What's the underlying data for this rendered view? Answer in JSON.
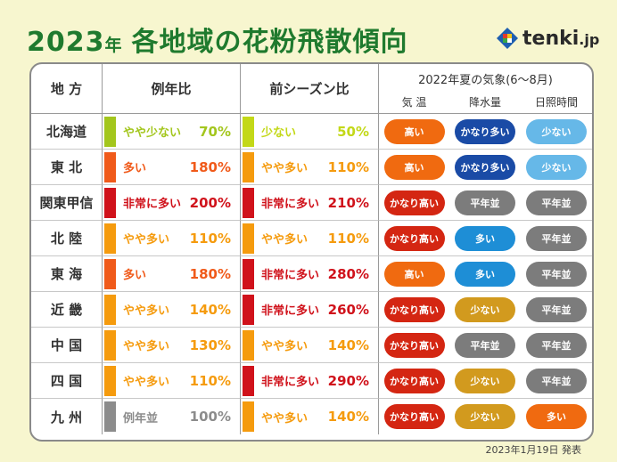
{
  "header": {
    "year": "2023",
    "year_suffix": "年",
    "title": "各地域の花粉飛散傾向",
    "logo_main": "tenki",
    "logo_sub": ".jp"
  },
  "footer": {
    "published": "2023年1月19日 発表"
  },
  "colors": {
    "title_green": "#1f7a2e",
    "background": "#f7f6cf",
    "yellowgreen": "#a3c61d",
    "orange_red": "#f05a1a",
    "red": "#d0121b",
    "orange": "#f59b0e",
    "gray": "#8c8c8c",
    "pill_orange": "#f06a10",
    "pill_red": "#d42612",
    "pill_navy": "#1a4ba6",
    "pill_blue": "#1e8ed6",
    "pill_lightblue": "#66b8e8",
    "pill_gray": "#7c7c7c",
    "pill_gold": "#d29a1e"
  },
  "chart_data": {
    "type": "table",
    "title": "2023年 各地域の花粉飛散傾向",
    "columns": {
      "region": "地 方",
      "vs_normal": "例年比",
      "vs_last": "前シーズン比",
      "weather_group": "2022年夏の気象(6〜8月)",
      "temp": "気 温",
      "rain": "降水量",
      "sun": "日照時間"
    },
    "rows": [
      {
        "region": "北海道",
        "normal_label": "やや少ない",
        "normal_pct": "70%",
        "normal_color": "#a3c61d",
        "last_label": "少ない",
        "last_pct": "50%",
        "last_color": "#c3d818",
        "temp": "高い",
        "temp_color": "#f06a10",
        "rain": "かなり多い",
        "rain_color": "#1a4ba6",
        "sun": "少ない",
        "sun_color": "#66b8e8"
      },
      {
        "region": "東 北",
        "normal_label": "多い",
        "normal_pct": "180%",
        "normal_color": "#f05a1a",
        "last_label": "やや多い",
        "last_pct": "110%",
        "last_color": "#f59b0e",
        "temp": "高い",
        "temp_color": "#f06a10",
        "rain": "かなり多い",
        "rain_color": "#1a4ba6",
        "sun": "少ない",
        "sun_color": "#66b8e8"
      },
      {
        "region": "関東甲信",
        "normal_label": "非常に多い",
        "normal_pct": "200%",
        "normal_color": "#d0121b",
        "last_label": "非常に多い",
        "last_pct": "210%",
        "last_color": "#d0121b",
        "temp": "かなり高い",
        "temp_color": "#d42612",
        "rain": "平年並",
        "rain_color": "#7c7c7c",
        "sun": "平年並",
        "sun_color": "#7c7c7c"
      },
      {
        "region": "北 陸",
        "normal_label": "やや多い",
        "normal_pct": "110%",
        "normal_color": "#f59b0e",
        "last_label": "やや多い",
        "last_pct": "110%",
        "last_color": "#f59b0e",
        "temp": "かなり高い",
        "temp_color": "#d42612",
        "rain": "多い",
        "rain_color": "#1e8ed6",
        "sun": "平年並",
        "sun_color": "#7c7c7c"
      },
      {
        "region": "東 海",
        "normal_label": "多い",
        "normal_pct": "180%",
        "normal_color": "#f05a1a",
        "last_label": "非常に多い",
        "last_pct": "280%",
        "last_color": "#d0121b",
        "temp": "高い",
        "temp_color": "#f06a10",
        "rain": "多い",
        "rain_color": "#1e8ed6",
        "sun": "平年並",
        "sun_color": "#7c7c7c"
      },
      {
        "region": "近 畿",
        "normal_label": "やや多い",
        "normal_pct": "140%",
        "normal_color": "#f59b0e",
        "last_label": "非常に多い",
        "last_pct": "260%",
        "last_color": "#d0121b",
        "temp": "かなり高い",
        "temp_color": "#d42612",
        "rain": "少ない",
        "rain_color": "#d29a1e",
        "sun": "平年並",
        "sun_color": "#7c7c7c"
      },
      {
        "region": "中 国",
        "normal_label": "やや多い",
        "normal_pct": "130%",
        "normal_color": "#f59b0e",
        "last_label": "やや多い",
        "last_pct": "140%",
        "last_color": "#f59b0e",
        "temp": "かなり高い",
        "temp_color": "#d42612",
        "rain": "平年並",
        "rain_color": "#7c7c7c",
        "sun": "平年並",
        "sun_color": "#7c7c7c"
      },
      {
        "region": "四 国",
        "normal_label": "やや多い",
        "normal_pct": "110%",
        "normal_color": "#f59b0e",
        "last_label": "非常に多い",
        "last_pct": "290%",
        "last_color": "#d0121b",
        "temp": "かなり高い",
        "temp_color": "#d42612",
        "rain": "少ない",
        "rain_color": "#d29a1e",
        "sun": "平年並",
        "sun_color": "#7c7c7c"
      },
      {
        "region": "九 州",
        "normal_label": "例年並",
        "normal_pct": "100%",
        "normal_color": "#8c8c8c",
        "last_label": "やや多い",
        "last_pct": "140%",
        "last_color": "#f59b0e",
        "temp": "かなり高い",
        "temp_color": "#d42612",
        "rain": "少ない",
        "rain_color": "#d29a1e",
        "sun": "多い",
        "sun_color": "#f06a10"
      }
    ]
  }
}
